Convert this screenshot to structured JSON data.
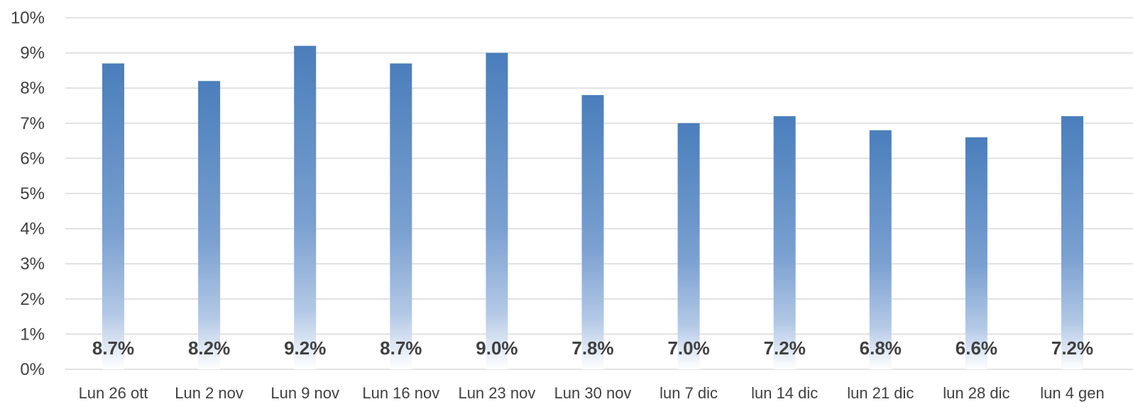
{
  "chart_data": {
    "type": "bar",
    "categories": [
      "Lun 26 ott",
      "Lun 2 nov",
      "Lun 9 nov",
      "Lun 16 nov",
      "Lun 23 nov",
      "Lun 30 nov",
      "lun 7 dic",
      "lun 14 dic",
      "lun 21 dic",
      "lun 28 dic",
      "lun 4 gen"
    ],
    "values": [
      8.7,
      8.2,
      9.2,
      8.7,
      9.0,
      7.8,
      7.0,
      7.2,
      6.8,
      6.6,
      7.2
    ],
    "data_labels": [
      "8.7%",
      "8.2%",
      "9.2%",
      "8.7%",
      "9.0%",
      "7.8%",
      "7.0%",
      "7.2%",
      "6.8%",
      "6.6%",
      "7.2%"
    ],
    "y_ticks": [
      "0%",
      "1%",
      "2%",
      "3%",
      "4%",
      "5%",
      "6%",
      "7%",
      "8%",
      "9%",
      "10%"
    ],
    "ylim": [
      0,
      10
    ],
    "grid": true,
    "legend": "none",
    "colors": {
      "bar_top": "#4a7ebb",
      "bar_bottom": "#ffffff",
      "grid": "#d9d9d9",
      "text": "#404040"
    }
  }
}
